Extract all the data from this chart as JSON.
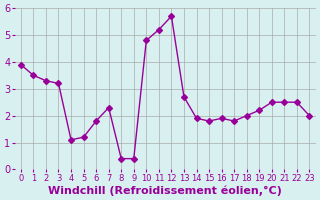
{
  "x": [
    0,
    1,
    2,
    3,
    4,
    5,
    6,
    7,
    8,
    9,
    10,
    11,
    12,
    13,
    14,
    15,
    16,
    17,
    18,
    19,
    20,
    21,
    22,
    23
  ],
  "y": [
    3.9,
    3.5,
    3.3,
    3.2,
    1.1,
    1.2,
    1.8,
    2.3,
    0.4,
    0.4,
    4.8,
    5.2,
    5.7,
    2.7,
    1.9,
    1.8,
    1.9,
    1.8,
    2.0,
    2.2,
    2.5,
    2.5,
    2.5,
    2.0
  ],
  "line_color": "#990099",
  "marker": "D",
  "marker_size": 3,
  "bg_color": "#d9f0f0",
  "grid_color": "#aaaaaa",
  "xlabel": "Windchill (Refroidissement éolien,°C)",
  "xlabel_color": "#990099",
  "xlabel_fontsize": 8,
  "tick_color": "#990099",
  "tick_fontsize": 7,
  "ylim": [
    0,
    6
  ],
  "xlim": [
    0,
    23
  ],
  "yticks": [
    0,
    1,
    2,
    3,
    4,
    5,
    6
  ],
  "xticks": [
    0,
    1,
    2,
    3,
    4,
    5,
    6,
    7,
    8,
    9,
    10,
    11,
    12,
    13,
    14,
    15,
    16,
    17,
    18,
    19,
    20,
    21,
    22,
    23
  ]
}
